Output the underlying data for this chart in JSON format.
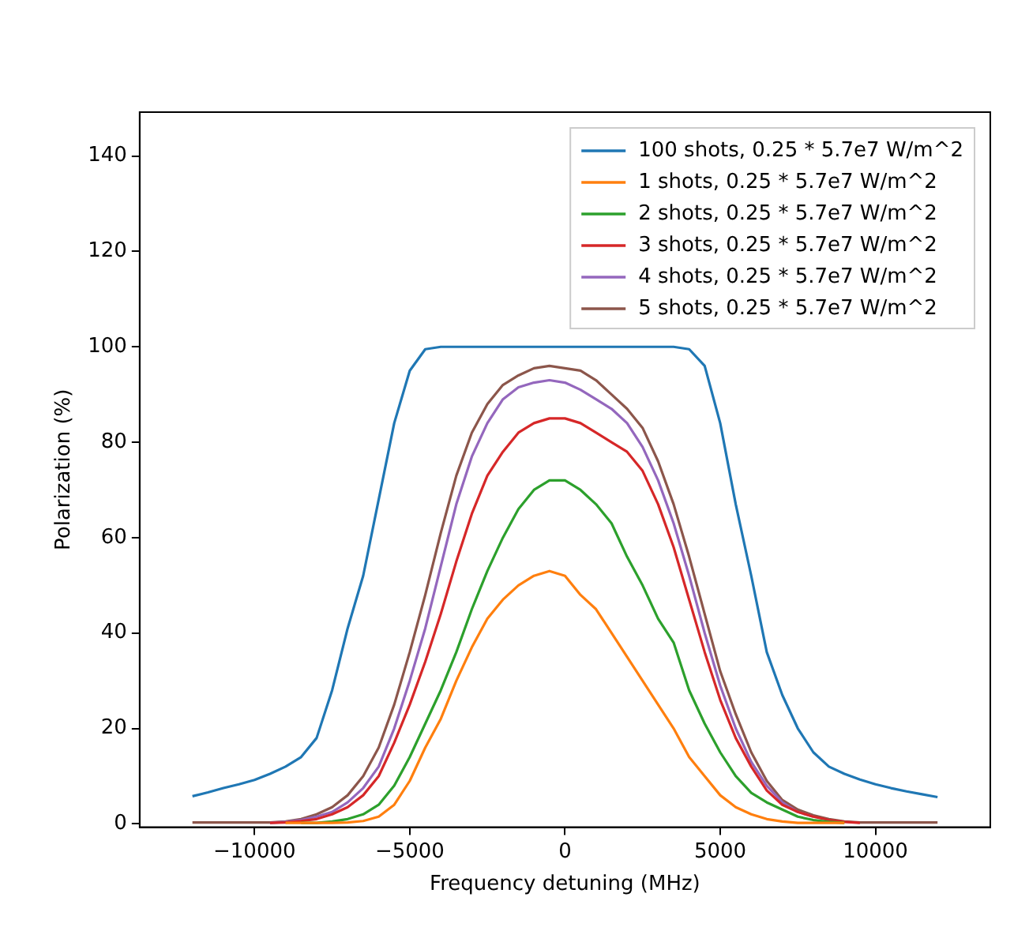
{
  "chart_data": {
    "type": "line",
    "xlabel": "Frequency detuning (MHz)",
    "ylabel": "Polarization (%)",
    "x": [
      -12000,
      -11500,
      -11000,
      -10500,
      -10000,
      -9500,
      -9000,
      -8500,
      -8000,
      -7500,
      -7000,
      -6500,
      -6000,
      -5500,
      -5000,
      -4500,
      -4000,
      -3500,
      -3000,
      -2500,
      -2000,
      -1500,
      -1000,
      -500,
      0,
      500,
      1000,
      1500,
      2000,
      2500,
      3000,
      3500,
      4000,
      4500,
      5000,
      5500,
      6000,
      6500,
      7000,
      7500,
      8000,
      8500,
      9000,
      9500,
      10000,
      10500,
      11000,
      11500,
      12000
    ],
    "series": [
      {
        "name": "100 shots, 0.25 * 5.7e7 W/m^2",
        "color": "#1f77b4",
        "values": [
          5.8,
          6.6,
          7.5,
          8.3,
          9.2,
          10.5,
          12,
          14,
          18,
          28,
          41,
          52,
          68,
          84,
          95,
          99.5,
          100,
          100,
          100,
          100,
          100,
          100,
          100,
          100,
          100,
          100,
          100,
          100,
          100,
          100,
          100,
          100,
          99.5,
          96,
          84,
          67,
          52,
          36,
          27,
          20,
          15,
          12,
          10.5,
          9.3,
          8.3,
          7.5,
          6.8,
          6.2,
          5.6
        ]
      },
      {
        "name": "1 shots, 0.25 * 5.7e7 W/m^2",
        "color": "#ff7f0e",
        "values": [
          null,
          null,
          null,
          null,
          null,
          null,
          0.2,
          0.2,
          0.2,
          0.2,
          0.3,
          0.6,
          1.5,
          4,
          9,
          16,
          22,
          30,
          37,
          43,
          47,
          50,
          52,
          53,
          52,
          48,
          45,
          40,
          35,
          30,
          25,
          20,
          14,
          10,
          6,
          3.5,
          2,
          1,
          0.5,
          0.2,
          0.2,
          0.2,
          0.2,
          null,
          null,
          null,
          null,
          null,
          null
        ]
      },
      {
        "name": "2 shots, 0.25 * 5.7e7 W/m^2",
        "color": "#2ca02c",
        "values": [
          null,
          null,
          null,
          null,
          null,
          null,
          null,
          0.2,
          0.2,
          0.5,
          1,
          2,
          4,
          8,
          14,
          21,
          28,
          36,
          45,
          53,
          60,
          66,
          70,
          72,
          72,
          70,
          67,
          63,
          56,
          50,
          43,
          38,
          28,
          21,
          15,
          10,
          6.5,
          4.5,
          3,
          1.5,
          0.8,
          0.4,
          0.2,
          null,
          null,
          null,
          null,
          null,
          null
        ]
      },
      {
        "name": "3 shots, 0.25 * 5.7e7 W/m^2",
        "color": "#d62728",
        "values": [
          null,
          null,
          null,
          null,
          null,
          0.2,
          0.3,
          0.6,
          1,
          2,
          3.5,
          6,
          10,
          17,
          25,
          34,
          44,
          55,
          65,
          73,
          78,
          82,
          84,
          85,
          85,
          84,
          82,
          80,
          78,
          74,
          67,
          58,
          47,
          36,
          26,
          18,
          12,
          7,
          4,
          2.5,
          1.5,
          0.8,
          0.4,
          0.2,
          null,
          null,
          null,
          null,
          null
        ]
      },
      {
        "name": "4 shots, 0.25 * 5.7e7 W/m^2",
        "color": "#9467bd",
        "values": [
          null,
          null,
          null,
          null,
          null,
          0.2,
          0.4,
          0.8,
          1.5,
          2.5,
          4.5,
          7.5,
          12,
          20,
          30,
          41,
          54,
          67,
          77,
          84,
          89,
          91.5,
          92.5,
          93,
          92.5,
          91,
          89,
          87,
          84,
          79,
          72,
          63,
          52,
          40,
          29,
          20,
          13,
          8,
          4.5,
          2.5,
          1.5,
          null,
          null,
          null,
          null,
          null,
          null,
          null,
          null
        ]
      },
      {
        "name": "5 shots, 0.25 * 5.7e7 W/m^2",
        "color": "#8c564b",
        "values": [
          0.3,
          0.3,
          0.3,
          0.3,
          0.3,
          0.3,
          0.5,
          1,
          2,
          3.5,
          6,
          10,
          16,
          25,
          36,
          48,
          61,
          73,
          82,
          88,
          92,
          94,
          95.5,
          96,
          95.5,
          95,
          93,
          90,
          87,
          83,
          76,
          67,
          56,
          44,
          32,
          23,
          15,
          9,
          5,
          3,
          1.8,
          1,
          0.5,
          0.3,
          0.3,
          0.3,
          0.3,
          0.3,
          0.3
        ]
      }
    ],
    "xlim": [
      -13700,
      13700
    ],
    "xticks": [
      {
        "value": -10000,
        "label": "−10000"
      },
      {
        "value": -5000,
        "label": "−5000"
      },
      0,
      5000,
      10000
    ],
    "ylim": [
      -0.7,
      149.2
    ],
    "yticks": [
      0,
      20,
      40,
      60,
      80,
      100,
      120,
      140
    ],
    "grid": false,
    "legend": "top right",
    "marker": "none",
    "line_style": "solid"
  }
}
